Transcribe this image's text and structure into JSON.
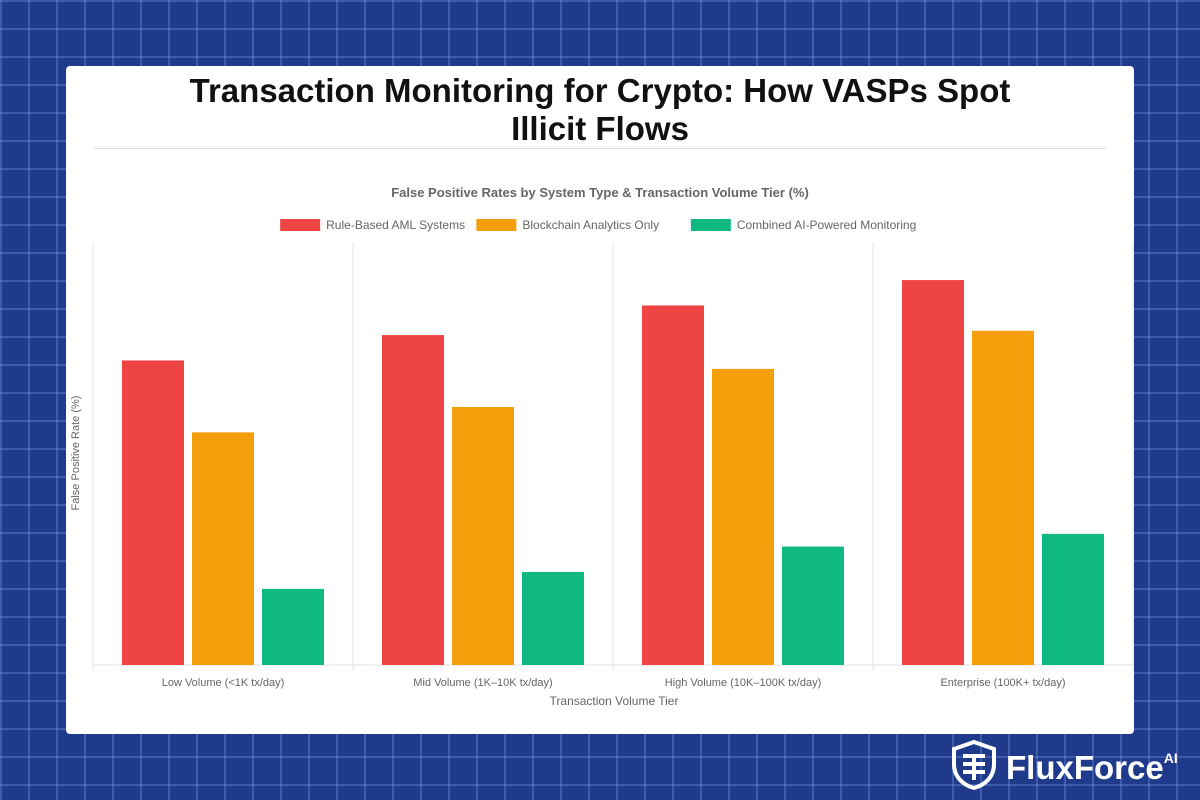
{
  "page": {
    "title_line1": "Transaction Monitoring for Crypto: How VASPs Spot",
    "title_line2": "Illicit Flows"
  },
  "brand": {
    "name": "FluxForce",
    "superscript": "AI",
    "icon": "shield-logo-icon",
    "color": "#ffffff"
  },
  "colors": {
    "background": "#1f3a8a",
    "rule_based": "#ef4444",
    "blockchain": "#f59e0b",
    "combined": "#10b981"
  },
  "chart_data": {
    "type": "bar",
    "title": "False Positive Rates by System Type & Transaction Volume Tier (%)",
    "xlabel": "Transaction Volume Tier",
    "ylabel": "False Positive Rate (%)",
    "categories": [
      "Low Volume (<1K tx/day)",
      "Mid Volume (1K–10K tx/day)",
      "High Volume (10K–100K tx/day)",
      "Enterprise (100K+ tx/day)"
    ],
    "series": [
      {
        "name": "Rule-Based AML Systems",
        "color": "#ef4444",
        "values": [
          72,
          78,
          85,
          91
        ]
      },
      {
        "name": "Blockchain Analytics Only",
        "color": "#f59e0b",
        "values": [
          55,
          61,
          70,
          79
        ]
      },
      {
        "name": "Combined AI-Powered Monitoring",
        "color": "#10b981",
        "values": [
          18,
          22,
          28,
          31
        ]
      }
    ],
    "ylim": [
      0,
      100
    ],
    "legend_position": "top-center",
    "grid": {
      "x": true,
      "y": false
    },
    "y_ticks_visible": false
  }
}
